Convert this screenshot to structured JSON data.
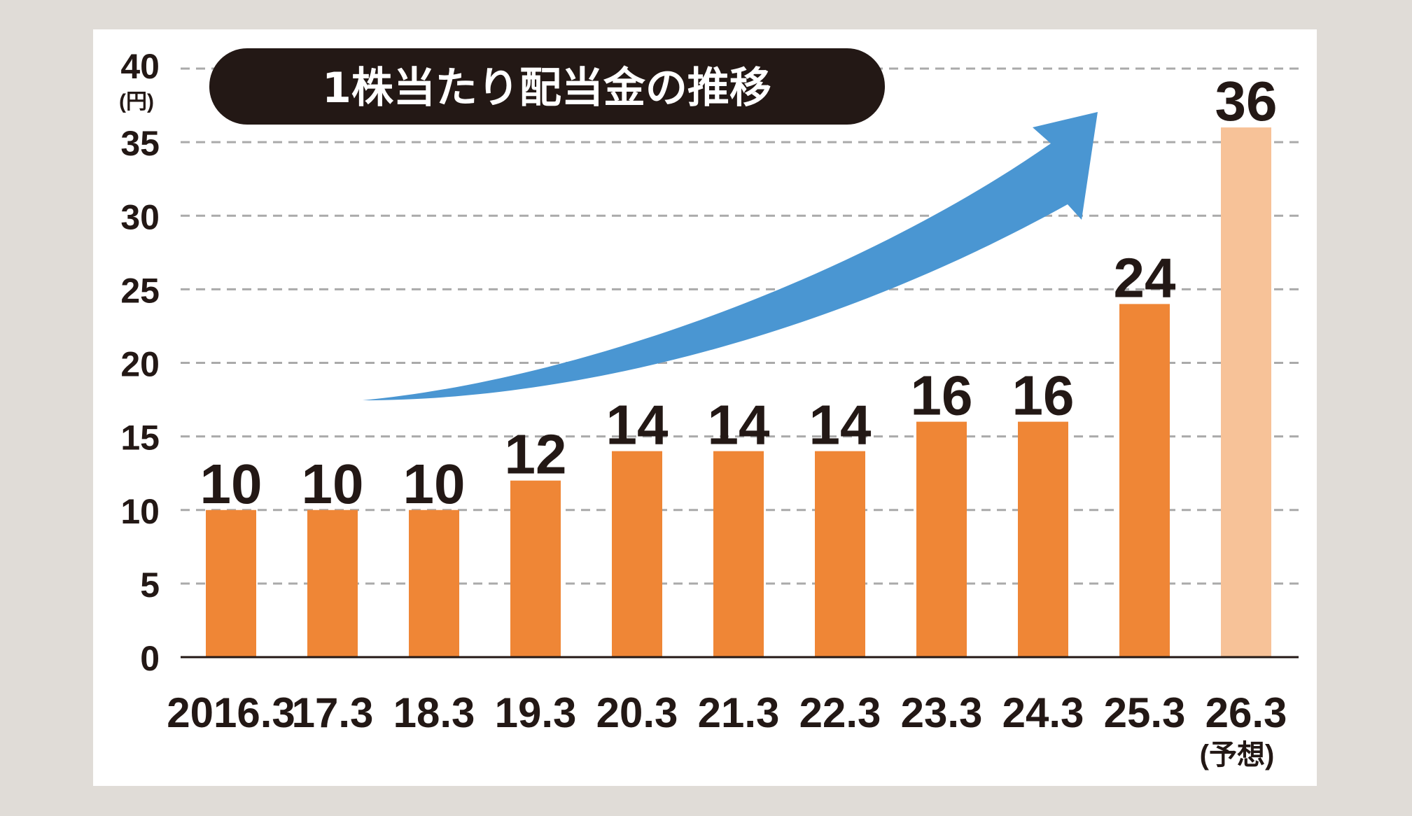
{
  "chart_data": {
    "type": "bar",
    "title": "1株当たり配当金の推移",
    "ylabel_unit": "(円)",
    "ylim": [
      0,
      40
    ],
    "yticks": [
      "0",
      "5",
      "10",
      "15",
      "20",
      "25",
      "30",
      "35",
      "40"
    ],
    "grid": true,
    "categories": [
      "2016.3",
      "17.3",
      "18.3",
      "19.3",
      "20.3",
      "21.3",
      "22.3",
      "23.3",
      "24.3",
      "25.3",
      "26.3"
    ],
    "values": [
      10,
      10,
      10,
      12,
      14,
      14,
      14,
      16,
      16,
      24,
      36
    ],
    "value_labels": [
      "10",
      "10",
      "10",
      "12",
      "14",
      "14",
      "14",
      "16",
      "16",
      "24",
      "36"
    ],
    "forecast_index": 10,
    "forecast_note": "(予想)",
    "colors": {
      "bar": "#ef8636",
      "bar_forecast": "#f7c298",
      "arrow": "#4a96d2",
      "title_bg": "#231815",
      "text": "#231815",
      "grid": "#aaaaaa",
      "background": "#e0dcd7",
      "panel": "#ffffff"
    }
  }
}
